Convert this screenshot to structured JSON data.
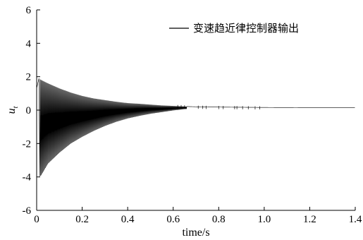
{
  "chart_data": {
    "type": "line",
    "xlabel": "time/s",
    "ylabel": "u",
    "ylabel_sub": "t",
    "xlim": [
      0,
      1.4
    ],
    "ylim": [
      -6,
      6
    ],
    "x_ticks": [
      "0",
      "0.2",
      "0.4",
      "0.6",
      "0.8",
      "1.0",
      "1.2",
      "1.4"
    ],
    "x_tick_values": [
      0,
      0.2,
      0.4,
      0.6,
      0.8,
      1.0,
      1.2,
      1.4
    ],
    "y_ticks": [
      "-6",
      "-4",
      "-2",
      "0",
      "2",
      "4",
      "6"
    ],
    "y_tick_values": [
      -6,
      -4,
      -2,
      0,
      2,
      4,
      6
    ],
    "grid": false,
    "legend_position": "top-right",
    "series": [
      {
        "name": "变速趋近律控制器输出",
        "color": "#000000",
        "style": "high-frequency oscillation inside a decaying envelope",
        "upper_envelope": {
          "x": [
            0.0,
            0.01,
            0.02,
            0.05,
            0.1,
            0.15,
            0.2,
            0.25,
            0.3,
            0.35,
            0.4,
            0.45,
            0.5,
            0.55,
            0.6,
            0.65,
            0.7,
            0.8,
            0.9,
            1.0,
            1.2,
            1.4
          ],
          "y": [
            1.3,
            1.9,
            1.8,
            1.6,
            1.3,
            1.05,
            0.85,
            0.7,
            0.6,
            0.5,
            0.42,
            0.38,
            0.33,
            0.28,
            0.25,
            0.22,
            0.2,
            0.18,
            0.17,
            0.16,
            0.15,
            0.15
          ]
        },
        "lower_envelope": {
          "x": [
            0.0,
            0.01,
            0.02,
            0.05,
            0.1,
            0.15,
            0.2,
            0.25,
            0.3,
            0.35,
            0.4,
            0.45,
            0.5,
            0.55,
            0.6,
            0.65,
            0.7,
            0.8,
            0.9,
            1.0,
            1.2,
            1.4
          ],
          "y": [
            1.3,
            -4.0,
            -3.9,
            -3.2,
            -2.55,
            -2.0,
            -1.6,
            -1.25,
            -0.95,
            -0.7,
            -0.5,
            -0.35,
            -0.22,
            -0.12,
            -0.02,
            0.06,
            0.1,
            0.13,
            0.14,
            0.15,
            0.15,
            0.15
          ]
        },
        "steady_state_value": 0.15
      }
    ]
  }
}
